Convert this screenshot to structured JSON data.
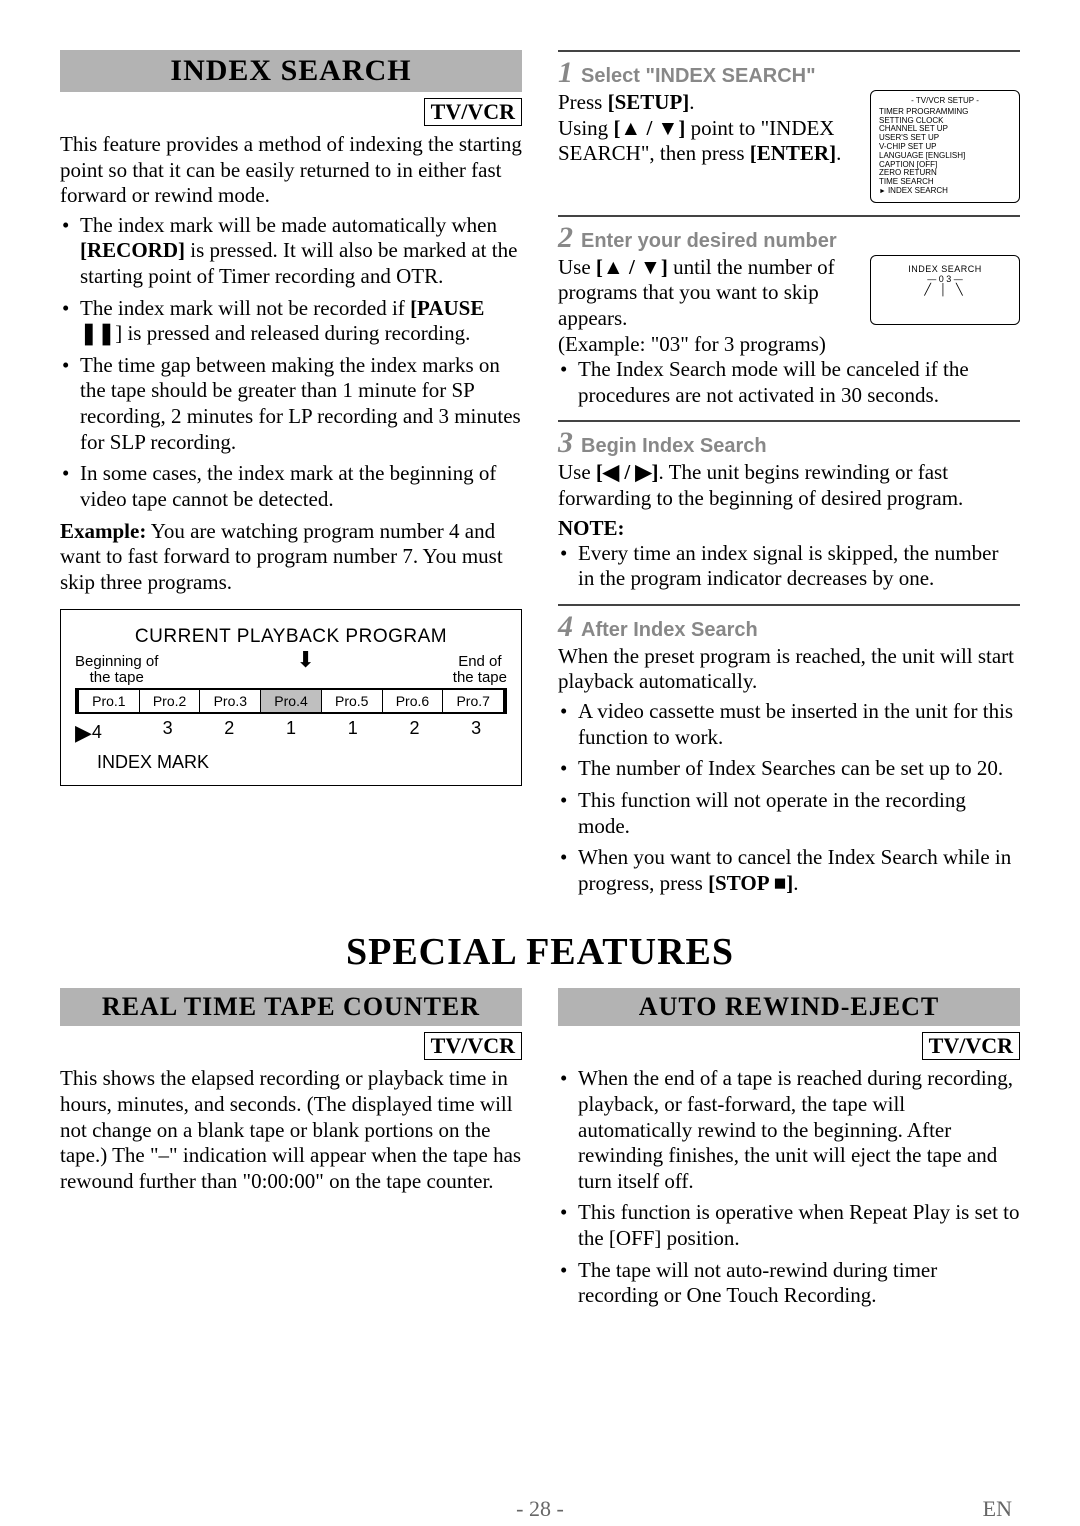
{
  "index_search": {
    "title": "INDEX SEARCH",
    "tvvcr": "TV/VCR",
    "intro": "This feature provides a method of indexing the starting point so that it can be easily returned to in either fast forward or rewind mode.",
    "bullets": [
      "The index mark will be made automatically when [RECORD] is pressed. It will also be marked at the starting point of Timer recording and OTR.",
      "The index mark will not be recorded if [PAUSE ❚❚] is pressed and released during recording.",
      "The time gap between making the index marks on the tape should be greater than 1 minute for SP recording, 2 minutes for LP recording and 3 minutes for SLP recording.",
      "In some cases, the index mark at the beginning of video tape cannot be detected."
    ],
    "example_label": "Example:",
    "example_text": " You are watching program number 4 and want to fast forward to program number 7. You must skip three programs.",
    "diagram": {
      "title": "CURRENT PLAYBACK PROGRAM",
      "left_label_1": "Beginning of",
      "left_label_2": "the tape",
      "right_label_1": "End of",
      "right_label_2": "the tape",
      "cells": [
        "Pro.1",
        "Pro.2",
        "Pro.3",
        "Pro.4",
        "Pro.5",
        "Pro.6",
        "Pro.7"
      ],
      "highlight_index": 3,
      "nums": [
        "4",
        "3",
        "2",
        "1",
        "1",
        "2",
        "3"
      ],
      "foot": "INDEX MARK"
    }
  },
  "right": {
    "step1": {
      "num": "1",
      "label": "Select \"INDEX SEARCH\"",
      "line1a": "Press ",
      "line1b": "[SETUP]",
      "line1c": ".",
      "line2a": "Using ",
      "line2b": "[▲ / ▼]",
      "line2c": " point to \"INDEX SEARCH\", then press ",
      "line2d": "[ENTER]",
      "line2e": "."
    },
    "panel1": {
      "title": "- TV/VCR SETUP -",
      "rows": [
        "TIMER PROGRAMMING",
        "SETTING CLOCK",
        "CHANNEL SET UP",
        "USER'S SET UP",
        "V-CHIP SET UP",
        "LANGUAGE   [ENGLISH]",
        "CAPTION   [OFF]",
        "ZERO RETURN",
        "TIME SEARCH"
      ],
      "last": "INDEX SEARCH"
    },
    "step2": {
      "num": "2",
      "label": "Enter your desired number",
      "t1a": "Use ",
      "t1b": "[▲ / ▼]",
      "t1c": " until the number of programs that you want to skip appears.",
      "t2": "(Example: \"03\" for 3 programs)"
    },
    "panel2": {
      "line1": "INDEX SEARCH",
      "line2": "— 0 3 —",
      "arrows": "╱ │ ╲"
    },
    "after_step2_bullet": "The Index Search mode will be canceled if the procedures are not activated in 30 seconds.",
    "step3": {
      "num": "3",
      "label": "Begin Index Search",
      "t1a": "Use ",
      "t1b": "[◀ / ▶]",
      "t1c": ". The unit begins rewinding or fast forwarding to the beginning of desired program.",
      "note": "NOTE:",
      "bullet": "Every time an index signal is skipped, the number in the program indicator decreases by one."
    },
    "step4": {
      "num": "4",
      "label": "After Index Search",
      "t1": "When the preset program is reached, the unit will start playback automatically.",
      "bullets": [
        "A video cassette must be inserted in the unit for this function to work.",
        "The number of Index Searches can be set up to 20.",
        "This function will not operate in the recording mode.",
        "When you want to cancel the Index Search while in progress, press [STOP ■]."
      ]
    }
  },
  "special_features_title": "SPECIAL FEATURES",
  "real_time": {
    "title": "REAL TIME TAPE COUNTER",
    "tvvcr": "TV/VCR",
    "text": "This shows the elapsed recording or playback time in hours, minutes, and seconds. (The displayed time will not change on a blank tape or blank portions on the tape.) The \"–\" indication will appear when the tape has rewound further than \"0:00:00\" on the tape counter."
  },
  "auto_rewind": {
    "title": "AUTO REWIND-EJECT",
    "tvvcr": "TV/VCR",
    "bullets": [
      "When the end of a tape is reached during recording, playback, or fast-forward, the tape will automatically rewind to the beginning. After rewinding finishes, the unit will eject the tape and turn itself off.",
      "This function is operative when Repeat Play is set to the [OFF] position.",
      "The tape will not auto-rewind during timer recording or One Touch Recording."
    ]
  },
  "footer": {
    "page": "- 28 -",
    "lang": "EN"
  }
}
